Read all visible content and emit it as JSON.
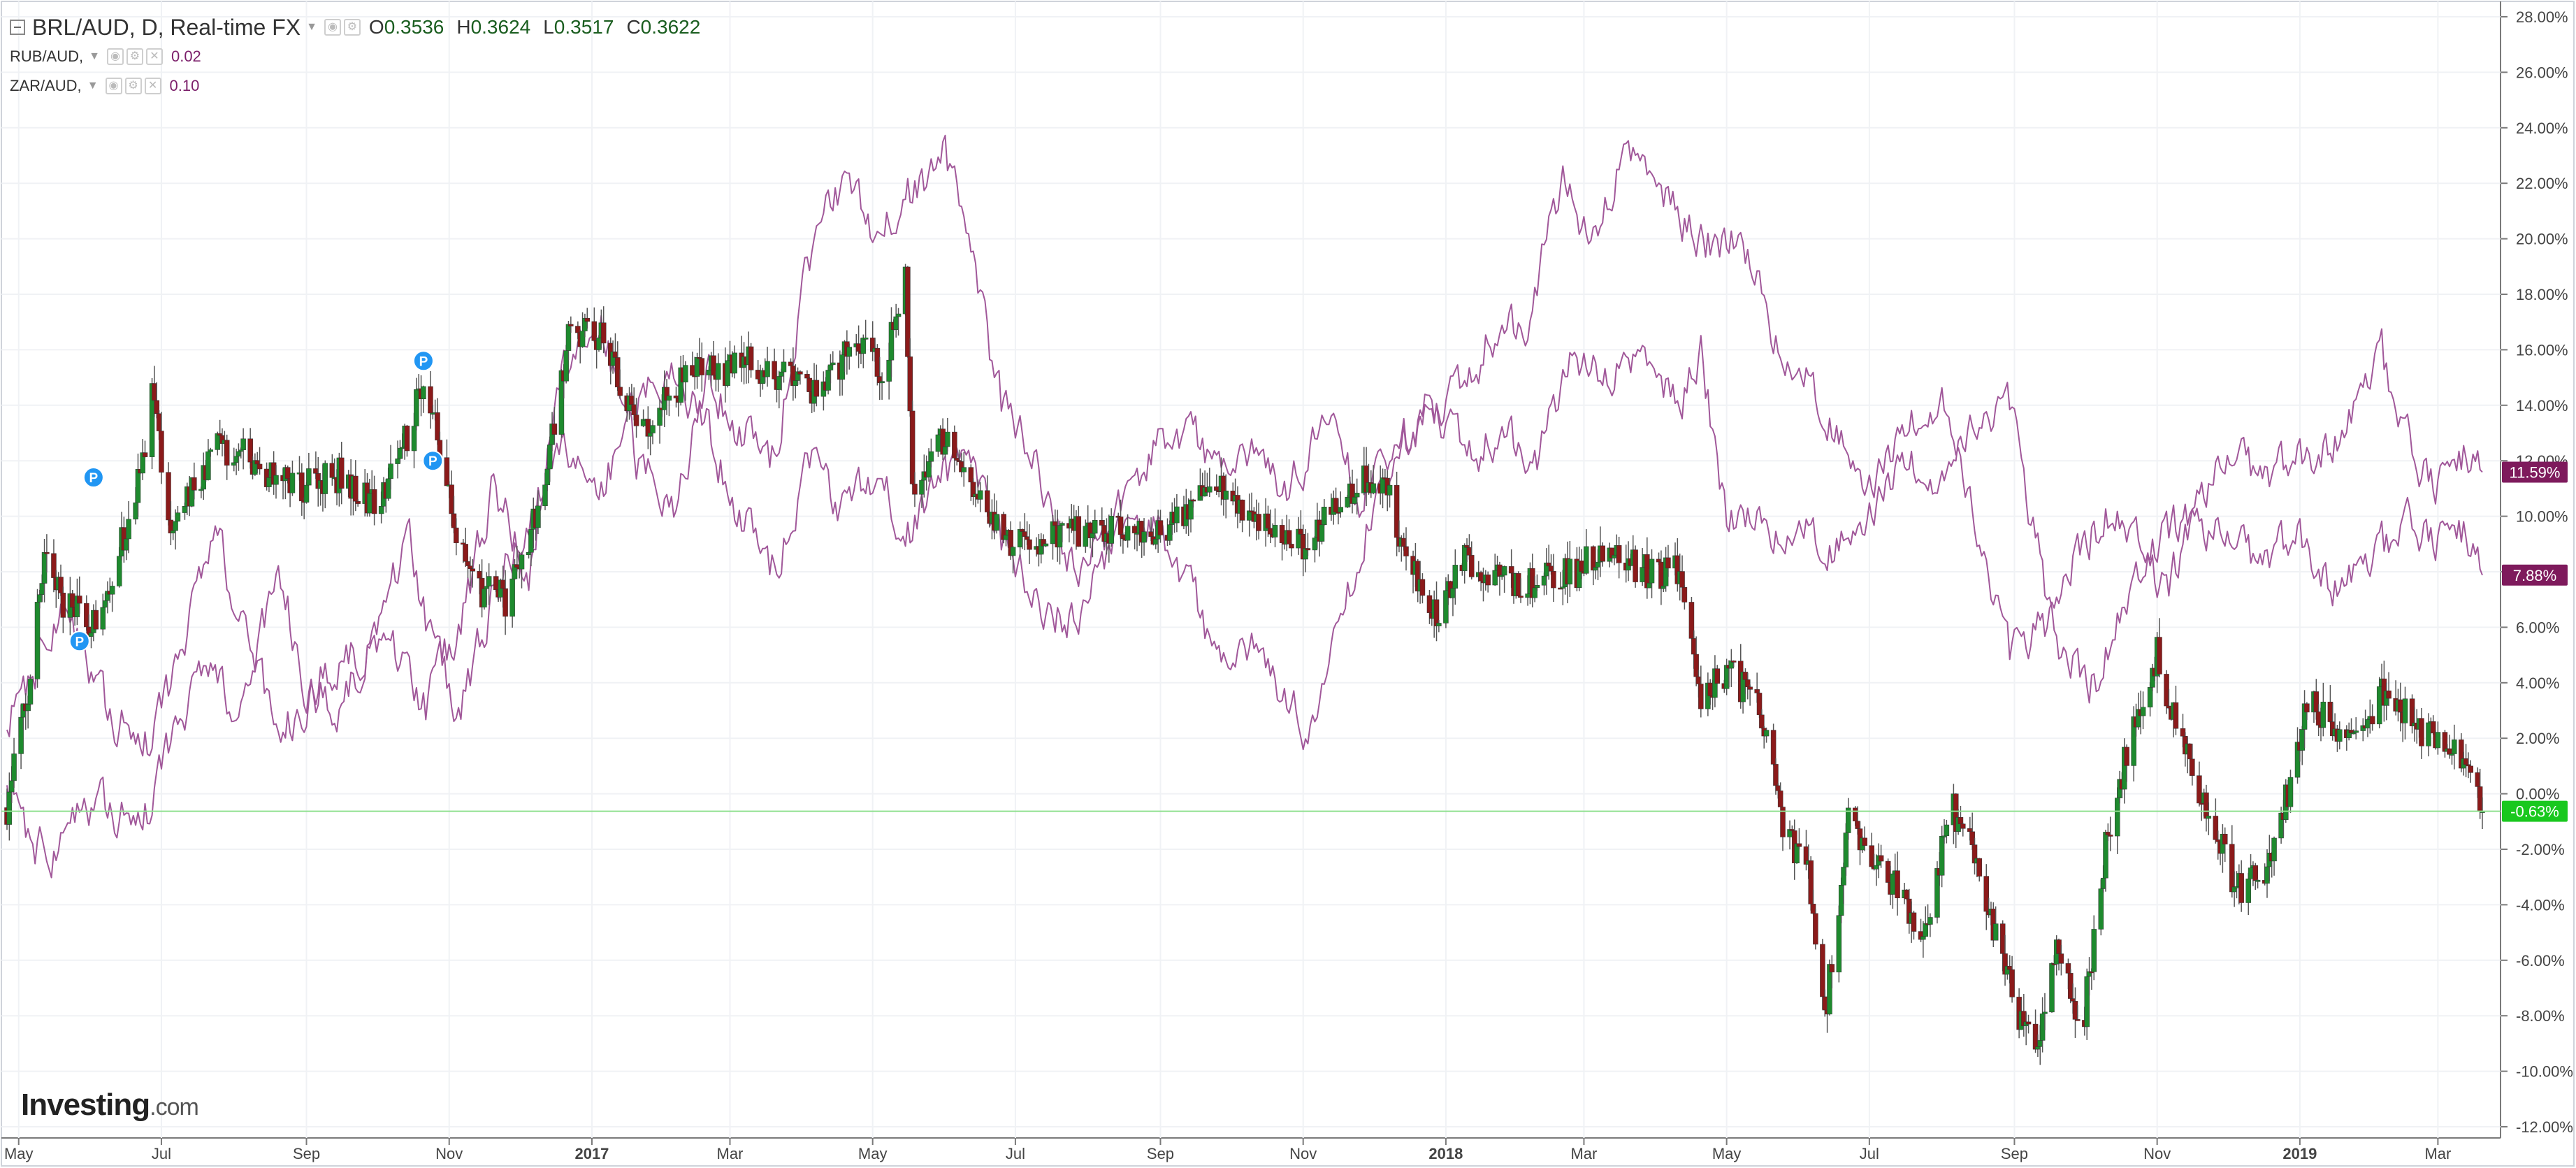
{
  "legend": {
    "main": {
      "symbol": "BRL/AUD, D, Real-time FX",
      "O": "0.3536",
      "H": "0.3624",
      "L": "0.3517",
      "C": "0.3622"
    },
    "comparisons": [
      {
        "symbol": "RUB/AUD,",
        "value": "0.02"
      },
      {
        "symbol": "ZAR/AUD,",
        "value": "0.10"
      }
    ]
  },
  "logo": {
    "brand": "Investing",
    "domain": ".com"
  },
  "colors": {
    "up": "#1e8a2e",
    "down": "#8b1a1a",
    "wick": "#555555",
    "compare": "#a1589a",
    "last_price": "#19c81e",
    "compare_label": "#7e1a5c",
    "marker": "#2196f3"
  },
  "icons": {
    "settings": "gear-icon",
    "visibility": "eye-icon",
    "close": "close-icon",
    "marker": "p-badge-icon"
  },
  "chart_data": {
    "type": "candlestick",
    "y_unit": "%",
    "ylim": [
      -12,
      28
    ],
    "y_ticks": [
      "28.00%",
      "26.00%",
      "24.00%",
      "22.00%",
      "20.00%",
      "18.00%",
      "16.00%",
      "14.00%",
      "12.00%",
      "10.00%",
      "8.00%",
      "6.00%",
      "4.00%",
      "2.00%",
      "0.00%",
      "-2.00%",
      "-4.00%",
      "-6.00%",
      "-8.00%",
      "-10.00%",
      "-12.00%"
    ],
    "x_range": [
      "2016-04-26",
      "2019-03-20"
    ],
    "x_ticks": [
      {
        "label": "May",
        "date": "2016-05-01",
        "bold": false
      },
      {
        "label": "Jul",
        "date": "2016-07-01",
        "bold": false
      },
      {
        "label": "Sep",
        "date": "2016-09-01",
        "bold": false
      },
      {
        "label": "Nov",
        "date": "2016-11-01",
        "bold": false
      },
      {
        "label": "2017",
        "date": "2017-01-01",
        "bold": true
      },
      {
        "label": "Mar",
        "date": "2017-03-01",
        "bold": false
      },
      {
        "label": "May",
        "date": "2017-05-01",
        "bold": false
      },
      {
        "label": "Jul",
        "date": "2017-07-01",
        "bold": false
      },
      {
        "label": "Sep",
        "date": "2017-09-01",
        "bold": false
      },
      {
        "label": "Nov",
        "date": "2017-11-01",
        "bold": false
      },
      {
        "label": "2018",
        "date": "2018-01-01",
        "bold": true
      },
      {
        "label": "Mar",
        "date": "2018-03-01",
        "bold": false
      },
      {
        "label": "May",
        "date": "2018-05-01",
        "bold": false
      },
      {
        "label": "Jul",
        "date": "2018-07-01",
        "bold": false
      },
      {
        "label": "Sep",
        "date": "2018-09-01",
        "bold": false
      },
      {
        "label": "Nov",
        "date": "2018-11-01",
        "bold": false
      },
      {
        "label": "2019",
        "date": "2019-01-01",
        "bold": true
      },
      {
        "label": "Mar",
        "date": "2019-03-01",
        "bold": false
      }
    ],
    "grid": true,
    "series": [
      {
        "name": "BRL/AUD",
        "kind": "candles",
        "last_label": "-0.63%",
        "last_value": -0.63,
        "keypoints": [
          [
            "2016-04-26",
            -0.5
          ],
          [
            "2016-05-05",
            3.5
          ],
          [
            "2016-05-12",
            8.5
          ],
          [
            "2016-05-20",
            7.0
          ],
          [
            "2016-06-01",
            6.0
          ],
          [
            "2016-06-10",
            8.0
          ],
          [
            "2016-06-20",
            10.5
          ],
          [
            "2016-06-27",
            14.5
          ],
          [
            "2016-07-05",
            9.5
          ],
          [
            "2016-07-25",
            12.5
          ],
          [
            "2016-08-10",
            12.0
          ],
          [
            "2016-08-25",
            11.0
          ],
          [
            "2016-09-15",
            11.5
          ],
          [
            "2016-10-01",
            10.5
          ],
          [
            "2016-10-15",
            13.0
          ],
          [
            "2016-10-22",
            15.5
          ],
          [
            "2016-10-29",
            11.5
          ],
          [
            "2016-11-10",
            7.5
          ],
          [
            "2016-11-25",
            7.0
          ],
          [
            "2016-12-10",
            10.5
          ],
          [
            "2016-12-22",
            16.5
          ],
          [
            "2017-01-05",
            16.5
          ],
          [
            "2017-01-20",
            13.0
          ],
          [
            "2017-02-10",
            15.0
          ],
          [
            "2017-03-10",
            15.5
          ],
          [
            "2017-04-10",
            14.5
          ],
          [
            "2017-04-25",
            16.5
          ],
          [
            "2017-05-05",
            15.0
          ],
          [
            "2017-05-15",
            19.0
          ],
          [
            "2017-05-18",
            11.0
          ],
          [
            "2017-06-01",
            13.0
          ],
          [
            "2017-06-10",
            11.0
          ],
          [
            "2017-07-01",
            9.0
          ],
          [
            "2017-08-01",
            9.5
          ],
          [
            "2017-09-01",
            9.5
          ],
          [
            "2017-09-25",
            11.0
          ],
          [
            "2017-10-15",
            10.0
          ],
          [
            "2017-11-01",
            9.0
          ],
          [
            "2017-11-20",
            11.0
          ],
          [
            "2017-12-05",
            11.5
          ],
          [
            "2017-12-15",
            8.5
          ],
          [
            "2017-12-28",
            6.5
          ],
          [
            "2018-01-10",
            8.5
          ],
          [
            "2018-02-01",
            7.5
          ],
          [
            "2018-02-25",
            8.0
          ],
          [
            "2018-03-10",
            9.0
          ],
          [
            "2018-03-25",
            8.0
          ],
          [
            "2018-04-10",
            8.0
          ],
          [
            "2018-04-20",
            3.5
          ],
          [
            "2018-05-01",
            4.5
          ],
          [
            "2018-05-15",
            3.0
          ],
          [
            "2018-05-25",
            -1.0
          ],
          [
            "2018-06-05",
            -3.0
          ],
          [
            "2018-06-12",
            -8.0
          ],
          [
            "2018-06-22",
            -1.0
          ],
          [
            "2018-07-10",
            -3.0
          ],
          [
            "2018-07-25",
            -5.0
          ],
          [
            "2018-08-05",
            -0.5
          ],
          [
            "2018-08-15",
            -2.0
          ],
          [
            "2018-08-28",
            -6.5
          ],
          [
            "2018-09-10",
            -9.5
          ],
          [
            "2018-09-20",
            -5.5
          ],
          [
            "2018-09-30",
            -8.5
          ],
          [
            "2018-10-10",
            -2.0
          ],
          [
            "2018-10-20",
            2.0
          ],
          [
            "2018-11-01",
            5.0
          ],
          [
            "2018-11-10",
            2.0
          ],
          [
            "2018-11-25",
            -1.0
          ],
          [
            "2018-12-05",
            -3.5
          ],
          [
            "2018-12-20",
            -2.5
          ],
          [
            "2018-12-28",
            0.5
          ],
          [
            "2019-01-05",
            3.5
          ],
          [
            "2019-01-20",
            2.0
          ],
          [
            "2019-02-05",
            3.5
          ],
          [
            "2019-02-20",
            2.5
          ],
          [
            "2019-03-05",
            1.5
          ],
          [
            "2019-03-12",
            1.5
          ],
          [
            "2019-03-20",
            -0.63
          ]
        ]
      },
      {
        "name": "RUB/AUD",
        "kind": "line",
        "last_label": "11.59%",
        "last_value": 11.59,
        "keypoints": [
          [
            "2016-04-26",
            3.0
          ],
          [
            "2016-05-05",
            4.0
          ],
          [
            "2016-05-20",
            6.5
          ],
          [
            "2016-06-10",
            2.5
          ],
          [
            "2016-06-25",
            2.0
          ],
          [
            "2016-07-05",
            4.0
          ],
          [
            "2016-07-25",
            9.0
          ],
          [
            "2016-08-20",
            2.0
          ],
          [
            "2016-09-05",
            4.0
          ],
          [
            "2016-09-20",
            5.0
          ],
          [
            "2016-10-05",
            5.5
          ],
          [
            "2016-10-22",
            3.0
          ],
          [
            "2016-11-05",
            6.0
          ],
          [
            "2016-11-20",
            11.0
          ],
          [
            "2016-12-05",
            8.0
          ],
          [
            "2016-12-20",
            16.0
          ],
          [
            "2017-01-05",
            17.0
          ],
          [
            "2017-01-20",
            12.0
          ],
          [
            "2017-02-05",
            10.0
          ],
          [
            "2017-02-20",
            15.0
          ],
          [
            "2017-03-05",
            13.0
          ],
          [
            "2017-03-20",
            12.0
          ],
          [
            "2017-04-01",
            18.0
          ],
          [
            "2017-04-15",
            22.0
          ],
          [
            "2017-05-01",
            20.5
          ],
          [
            "2017-05-15",
            21.5
          ],
          [
            "2017-06-01",
            23.0
          ],
          [
            "2017-06-10",
            20.0
          ],
          [
            "2017-06-25",
            14.0
          ],
          [
            "2017-07-10",
            12.0
          ],
          [
            "2017-07-25",
            8.0
          ],
          [
            "2017-08-10",
            9.5
          ],
          [
            "2017-08-25",
            12.0
          ],
          [
            "2017-09-10",
            13.0
          ],
          [
            "2017-09-25",
            12.0
          ],
          [
            "2017-10-10",
            12.5
          ],
          [
            "2017-10-25",
            11.0
          ],
          [
            "2017-11-10",
            13.0
          ],
          [
            "2017-11-25",
            11.0
          ],
          [
            "2017-12-10",
            12.5
          ],
          [
            "2017-12-25",
            13.5
          ],
          [
            "2018-01-10",
            14.5
          ],
          [
            "2018-01-20",
            16.5
          ],
          [
            "2018-02-05",
            17.0
          ],
          [
            "2018-02-20",
            22.0
          ],
          [
            "2018-03-05",
            20.0
          ],
          [
            "2018-03-20",
            23.5
          ],
          [
            "2018-04-05",
            21.5
          ],
          [
            "2018-04-20",
            20.0
          ],
          [
            "2018-05-05",
            20.0
          ],
          [
            "2018-05-20",
            17.0
          ],
          [
            "2018-06-05",
            15.0
          ],
          [
            "2018-06-15",
            13.0
          ],
          [
            "2018-07-01",
            11.0
          ],
          [
            "2018-07-15",
            13.0
          ],
          [
            "2018-08-01",
            14.0
          ],
          [
            "2018-08-15",
            10.0
          ],
          [
            "2018-08-30",
            5.0
          ],
          [
            "2018-09-15",
            6.0
          ],
          [
            "2018-09-30",
            9.0
          ],
          [
            "2018-10-10",
            10.0
          ],
          [
            "2018-10-25",
            9.0
          ],
          [
            "2018-11-05",
            7.0
          ],
          [
            "2018-11-20",
            11.0
          ],
          [
            "2018-12-05",
            12.0
          ],
          [
            "2018-12-20",
            11.5
          ],
          [
            "2019-01-05",
            12.0
          ],
          [
            "2019-01-20",
            13.0
          ],
          [
            "2019-02-05",
            15.5
          ],
          [
            "2019-02-20",
            12.0
          ],
          [
            "2019-03-01",
            11.0
          ],
          [
            "2019-03-10",
            12.5
          ],
          [
            "2019-03-20",
            11.59
          ]
        ]
      },
      {
        "name": "ZAR/AUD",
        "kind": "line",
        "last_label": "7.88%",
        "last_value": 7.88,
        "keypoints": [
          [
            "2016-04-26",
            1.0
          ],
          [
            "2016-05-05",
            -1.5
          ],
          [
            "2016-05-15",
            -2.5
          ],
          [
            "2016-05-25",
            -1.0
          ],
          [
            "2016-06-05",
            -0.5
          ],
          [
            "2016-06-15",
            -1.0
          ],
          [
            "2016-06-25",
            -0.5
          ],
          [
            "2016-07-05",
            2.0
          ],
          [
            "2016-07-20",
            4.0
          ],
          [
            "2016-08-05",
            3.0
          ],
          [
            "2016-08-20",
            8.0
          ],
          [
            "2016-09-01",
            4.0
          ],
          [
            "2016-09-15",
            3.0
          ],
          [
            "2016-10-01",
            6.0
          ],
          [
            "2016-10-15",
            9.0
          ],
          [
            "2016-10-25",
            5.0
          ],
          [
            "2016-11-05",
            3.0
          ],
          [
            "2016-11-20",
            7.0
          ],
          [
            "2016-12-05",
            10.0
          ],
          [
            "2016-12-20",
            13.0
          ],
          [
            "2017-01-05",
            11.0
          ],
          [
            "2017-01-20",
            14.0
          ],
          [
            "2017-02-05",
            15.0
          ],
          [
            "2017-02-20",
            13.0
          ],
          [
            "2017-03-05",
            10.0
          ],
          [
            "2017-03-20",
            8.0
          ],
          [
            "2017-04-05",
            12.0
          ],
          [
            "2017-04-20",
            10.0
          ],
          [
            "2017-05-05",
            12.0
          ],
          [
            "2017-05-15",
            9.0
          ],
          [
            "2017-05-25",
            11.0
          ],
          [
            "2017-06-10",
            12.0
          ],
          [
            "2017-06-25",
            9.0
          ],
          [
            "2017-07-10",
            7.0
          ],
          [
            "2017-07-25",
            6.0
          ],
          [
            "2017-08-10",
            9.0
          ],
          [
            "2017-08-25",
            10.0
          ],
          [
            "2017-09-10",
            8.0
          ],
          [
            "2017-09-25",
            5.0
          ],
          [
            "2017-10-10",
            5.5
          ],
          [
            "2017-10-25",
            3.5
          ],
          [
            "2017-11-05",
            2.0
          ],
          [
            "2017-11-15",
            5.0
          ],
          [
            "2017-11-25",
            9.0
          ],
          [
            "2017-12-10",
            12.0
          ],
          [
            "2017-12-25",
            14.0
          ],
          [
            "2018-01-10",
            12.0
          ],
          [
            "2018-01-25",
            13.0
          ],
          [
            "2018-02-10",
            12.0
          ],
          [
            "2018-02-25",
            16.0
          ],
          [
            "2018-03-10",
            15.0
          ],
          [
            "2018-03-25",
            16.0
          ],
          [
            "2018-04-10",
            14.0
          ],
          [
            "2018-04-20",
            16.0
          ],
          [
            "2018-05-01",
            10.0
          ],
          [
            "2018-05-15",
            9.5
          ],
          [
            "2018-06-01",
            10.0
          ],
          [
            "2018-06-15",
            8.5
          ],
          [
            "2018-07-01",
            10.0
          ],
          [
            "2018-07-15",
            12.0
          ],
          [
            "2018-08-01",
            11.0
          ],
          [
            "2018-08-15",
            13.5
          ],
          [
            "2018-08-30",
            14.0
          ],
          [
            "2018-09-10",
            9.0
          ],
          [
            "2018-09-20",
            5.0
          ],
          [
            "2018-10-05",
            4.0
          ],
          [
            "2018-10-20",
            7.0
          ],
          [
            "2018-11-01",
            9.0
          ],
          [
            "2018-11-15",
            10.0
          ],
          [
            "2018-12-01",
            9.0
          ],
          [
            "2018-12-15",
            8.5
          ],
          [
            "2019-01-01",
            9.0
          ],
          [
            "2019-01-15",
            7.5
          ],
          [
            "2019-02-01",
            8.0
          ],
          [
            "2019-02-15",
            10.0
          ],
          [
            "2019-03-01",
            9.0
          ],
          [
            "2019-03-10",
            10.0
          ],
          [
            "2019-03-20",
            7.88
          ]
        ]
      }
    ],
    "markers": [
      {
        "label": "P",
        "date": "2016-05-27",
        "value": 5.5
      },
      {
        "label": "P",
        "date": "2016-06-02",
        "value": 11.4
      },
      {
        "label": "P",
        "date": "2016-10-21",
        "value": 15.6
      },
      {
        "label": "P",
        "date": "2016-10-25",
        "value": 12.0
      }
    ]
  }
}
